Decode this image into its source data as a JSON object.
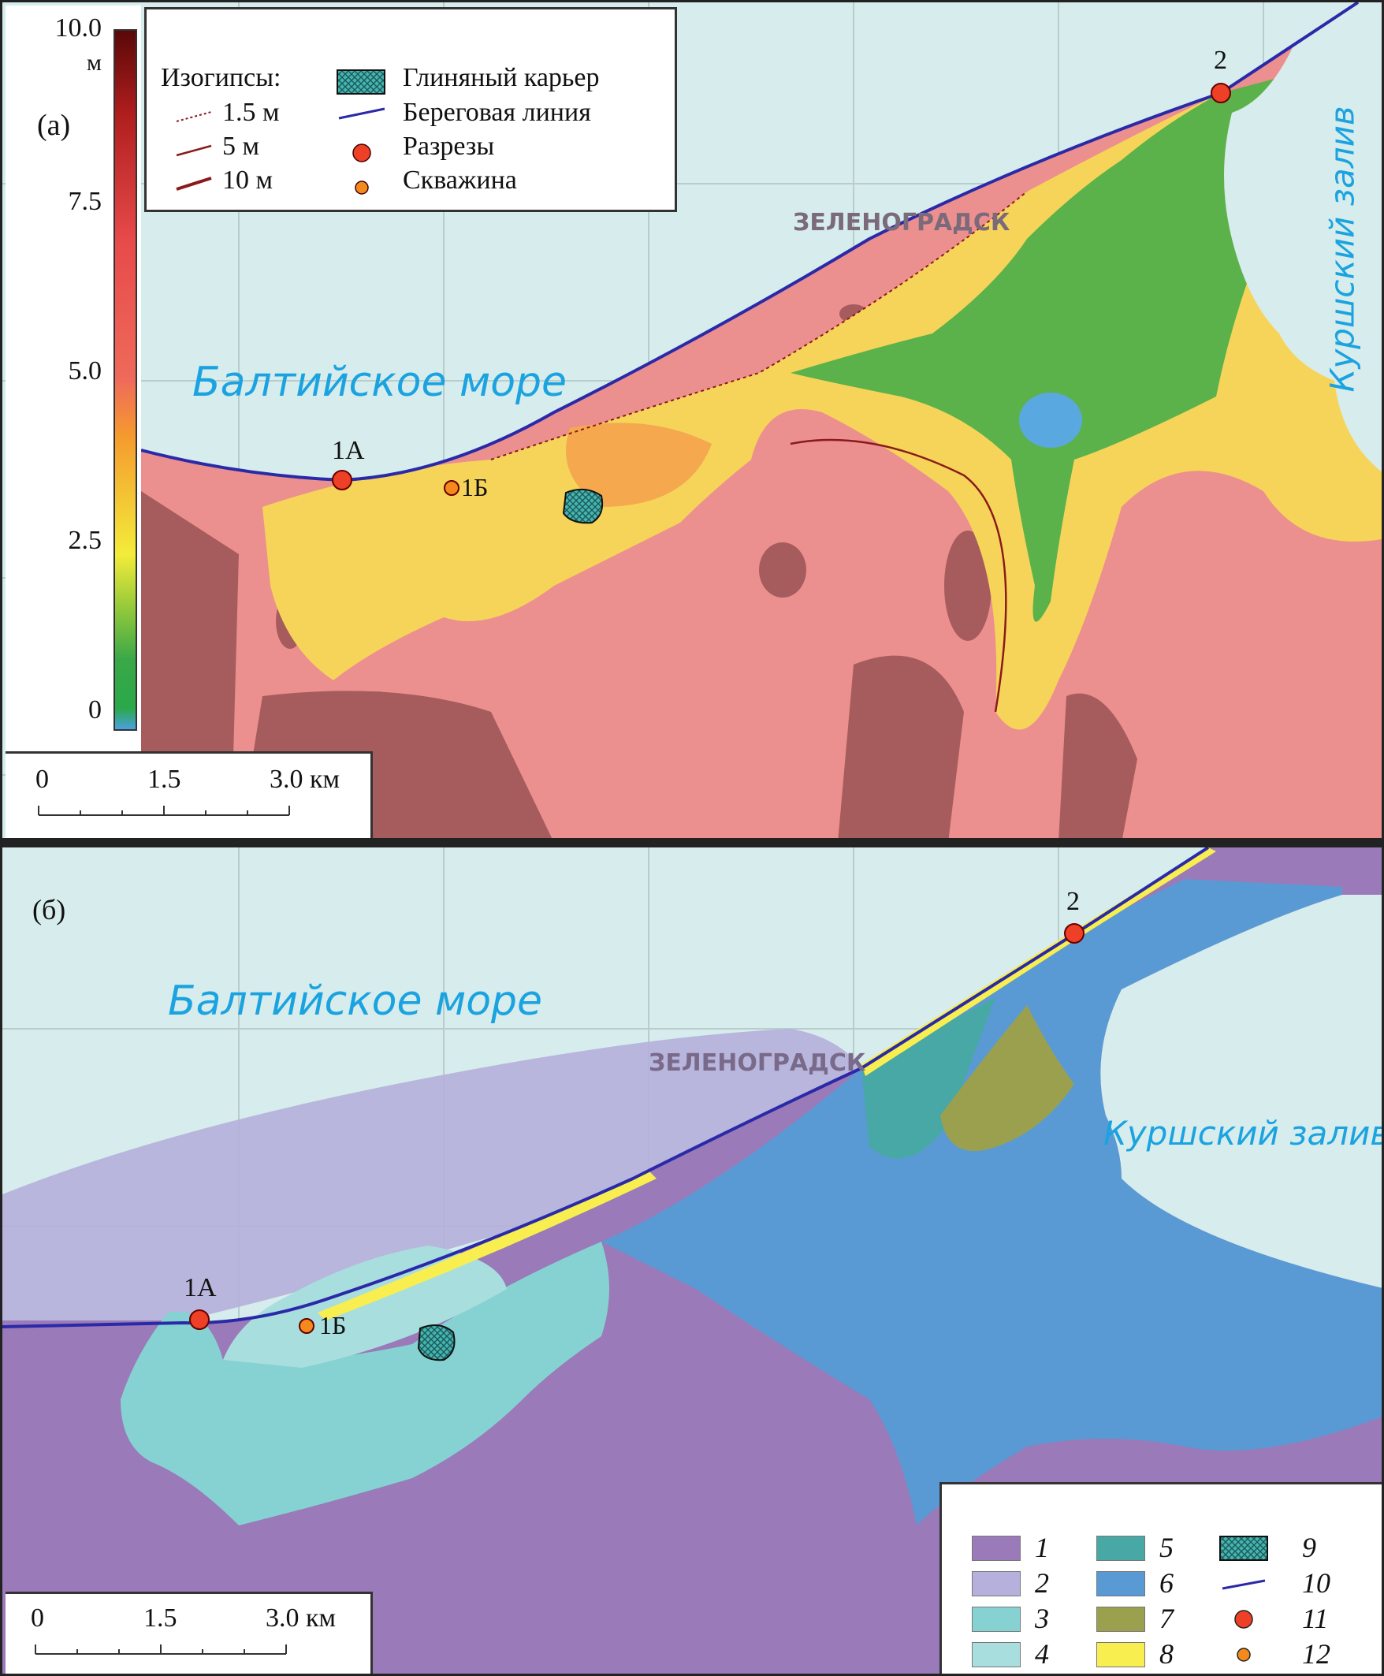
{
  "panel_a": {
    "label": "(а)",
    "colorbar": {
      "unit": "м",
      "ticks": [
        "10.0",
        "7.5",
        "5.0",
        "2.5",
        "0"
      ],
      "range": [
        0,
        10
      ],
      "colors": [
        "#4aa0e0",
        "#2aa84a",
        "#9ccc3a",
        "#f4ec3a",
        "#f59a2e",
        "#ef6a5a",
        "#e74a4a",
        "#b01e1e",
        "#6a0a0a"
      ]
    },
    "legend": {
      "isohypse_title": "Изогипсы:",
      "isohypses": [
        "1.5 м",
        "5 м",
        "10 м"
      ],
      "items": [
        "Глиняный карьер",
        "Береговая линия",
        "Разрезы",
        "Скважина"
      ]
    },
    "scale": {
      "labels": [
        "0",
        "1.5",
        "3.0 км"
      ]
    },
    "places": {
      "sea": "Балтийское море",
      "lagoon": "Куршский залив",
      "town": "ЗЕЛЕНОГРАДСК"
    },
    "points": {
      "p1a": "1А",
      "p1b": "1Б",
      "p2": "2"
    }
  },
  "panel_b": {
    "label": "(б)",
    "legend": {
      "items": [
        {
          "num": "1",
          "color": "#9a7ab8"
        },
        {
          "num": "2",
          "color": "#b5b0dc"
        },
        {
          "num": "3",
          "color": "#86d2d2"
        },
        {
          "num": "4",
          "color": "#a9dede"
        },
        {
          "num": "5",
          "color": "#48a8a6"
        },
        {
          "num": "6",
          "color": "#5a9ad4"
        },
        {
          "num": "7",
          "color": "#9aa04e"
        },
        {
          "num": "8",
          "color": "#f8ee50"
        },
        {
          "num": "9",
          "color": "#46b4b0"
        },
        {
          "num": "10",
          "color": "#2a2aa8"
        },
        {
          "num": "11",
          "color": "#ee4026"
        },
        {
          "num": "12",
          "color": "#f48a1e"
        }
      ]
    },
    "scale": {
      "labels": [
        "0",
        "1.5",
        "3.0 км"
      ]
    },
    "places": {
      "sea": "Балтийское море",
      "lagoon": "Куршский залив",
      "town": "ЗЕЛЕНОГРАДСК"
    },
    "points": {
      "p1a": "1А",
      "p1b": "1Б",
      "p2": "2"
    }
  }
}
